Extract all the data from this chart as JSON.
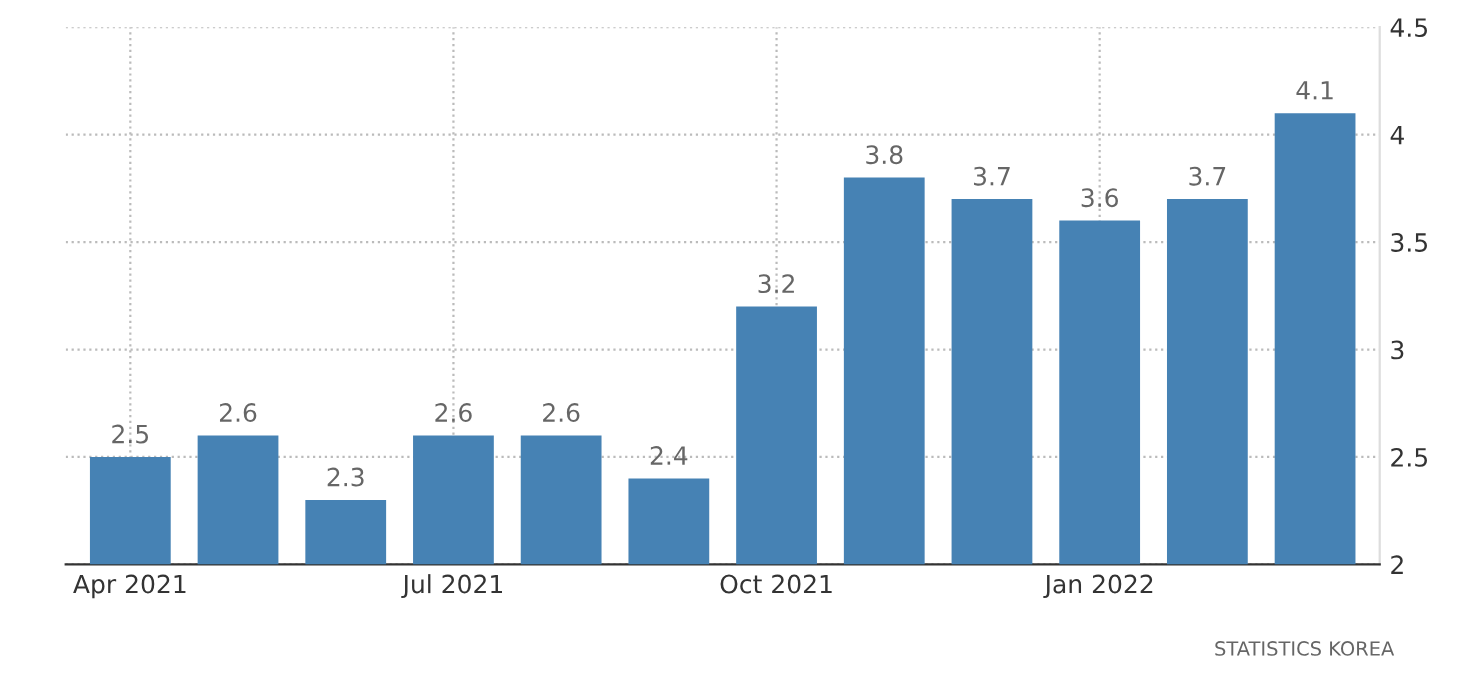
{
  "chart_data": {
    "type": "bar",
    "categories": [
      "Apr 2021",
      null,
      null,
      "Jul 2021",
      null,
      null,
      "Oct 2021",
      null,
      null,
      "Jan 2022",
      null,
      null
    ],
    "values": [
      2.5,
      2.6,
      2.3,
      2.6,
      2.6,
      2.4,
      3.2,
      3.8,
      3.7,
      3.6,
      3.7,
      4.1
    ],
    "color": "#4682b4",
    "ylim": [
      2,
      4.5
    ],
    "yticks": [
      2,
      2.5,
      3,
      3.5,
      4,
      4.5
    ],
    "grid": true,
    "data_labels": true,
    "annotations": [
      "STATISTICS KOREA"
    ]
  }
}
